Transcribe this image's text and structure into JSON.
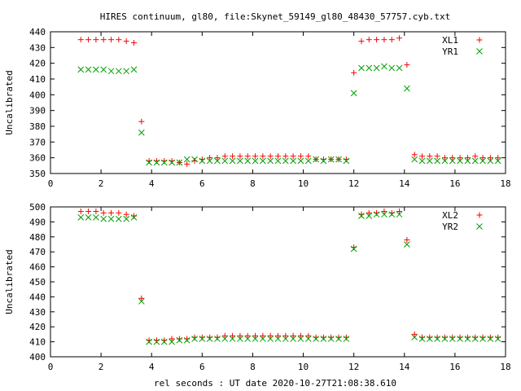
{
  "chart_data": {
    "title": "HIRES continuum, gl80, file:Skynet_59149_gl80_48430_57757.cyb.txt",
    "xlabel": "rel seconds : UT date 2020-10-27T21:08:38.610",
    "panels": [
      {
        "type": "scatter",
        "ylabel": "Uncalibrated",
        "xlim": [
          0,
          18
        ],
        "ylim": [
          350,
          440
        ],
        "xticks": [
          0,
          2,
          4,
          6,
          8,
          10,
          12,
          14,
          16,
          18
        ],
        "yticks": [
          350,
          360,
          370,
          380,
          390,
          400,
          410,
          420,
          430,
          440
        ],
        "legend_position": "top-right",
        "x": [
          1.2,
          1.5,
          1.8,
          2.1,
          2.4,
          2.7,
          3.0,
          3.3,
          3.6,
          3.9,
          4.2,
          4.5,
          4.8,
          5.1,
          5.4,
          5.7,
          6.0,
          6.3,
          6.6,
          6.9,
          7.2,
          7.5,
          7.8,
          8.1,
          8.4,
          8.7,
          9.0,
          9.3,
          9.6,
          9.9,
          10.2,
          10.5,
          10.8,
          11.1,
          11.4,
          11.7,
          12.0,
          12.3,
          12.6,
          12.9,
          13.2,
          13.5,
          13.8,
          14.1,
          14.4,
          14.7,
          15.0,
          15.3,
          15.6,
          15.9,
          16.2,
          16.5,
          16.8,
          17.1,
          17.4,
          17.7
        ],
        "series": [
          {
            "name": "XL1",
            "marker": "+",
            "color": "#ff0000",
            "values": [
              435,
              435,
              435,
              435,
              435,
              435,
              434,
              433,
              383,
              358,
              358,
              358,
              358,
              357,
              356,
              358,
              359,
              360,
              360,
              361,
              361,
              361,
              361,
              361,
              361,
              361,
              361,
              361,
              361,
              361,
              361,
              359,
              359,
              359,
              359,
              359,
              414,
              434,
              435,
              435,
              435,
              435,
              436,
              419,
              362,
              361,
              361,
              361,
              360,
              360,
              360,
              360,
              361,
              360,
              360,
              360
            ]
          },
          {
            "name": "YR1",
            "marker": "x",
            "color": "#00a000",
            "values": [
              416,
              416,
              416,
              416,
              415,
              415,
              415,
              416,
              376,
              357,
              357,
              357,
              357,
              357,
              359,
              359,
              358,
              358,
              358,
              358,
              358,
              358,
              358,
              358,
              358,
              358,
              358,
              358,
              358,
              358,
              358,
              359,
              358,
              359,
              359,
              358,
              401,
              417,
              417,
              417,
              418,
              417,
              417,
              404,
              359,
              358,
              358,
              358,
              358,
              358,
              358,
              358,
              358,
              358,
              358,
              358
            ]
          }
        ]
      },
      {
        "type": "scatter",
        "ylabel": "Uncalibrated",
        "xlim": [
          0,
          18
        ],
        "ylim": [
          400,
          500
        ],
        "xticks": [
          0,
          2,
          4,
          6,
          8,
          10,
          12,
          14,
          16,
          18
        ],
        "yticks": [
          400,
          410,
          420,
          430,
          440,
          450,
          460,
          470,
          480,
          490,
          500
        ],
        "legend_position": "top-right",
        "x": [
          1.2,
          1.5,
          1.8,
          2.1,
          2.4,
          2.7,
          3.0,
          3.3,
          3.6,
          3.9,
          4.2,
          4.5,
          4.8,
          5.1,
          5.4,
          5.7,
          6.0,
          6.3,
          6.6,
          6.9,
          7.2,
          7.5,
          7.8,
          8.1,
          8.4,
          8.7,
          9.0,
          9.3,
          9.6,
          9.9,
          10.2,
          10.5,
          10.8,
          11.1,
          11.4,
          11.7,
          12.0,
          12.3,
          12.6,
          12.9,
          13.2,
          13.5,
          13.8,
          14.1,
          14.4,
          14.7,
          15.0,
          15.3,
          15.6,
          15.9,
          16.2,
          16.5,
          16.8,
          17.1,
          17.4,
          17.7
        ],
        "series": [
          {
            "name": "XL2",
            "marker": "+",
            "color": "#ff0000",
            "values": [
              497,
              497,
              497,
              496,
              496,
              496,
              495,
              494,
              439,
              411,
              411,
              411,
              412,
              412,
              412,
              413,
              413,
              413,
              413,
              414,
              414,
              414,
              414,
              414,
              414,
              414,
              414,
              414,
              414,
              414,
              414,
              413,
              413,
              413,
              413,
              413,
              473,
              495,
              496,
              496,
              497,
              496,
              497,
              478,
              415,
              413,
              413,
              413,
              413,
              413,
              413,
              413,
              413,
              413,
              413,
              413
            ]
          },
          {
            "name": "YR2",
            "marker": "x",
            "color": "#00a000",
            "values": [
              493,
              493,
              493,
              492,
              492,
              492,
              492,
              493,
              437,
              410,
              410,
              410,
              410,
              411,
              411,
              412,
              412,
              412,
              412,
              412,
              412,
              412,
              412,
              412,
              412,
              412,
              412,
              412,
              412,
              412,
              412,
              412,
              412,
              412,
              412,
              412,
              472,
              494,
              494,
              495,
              495,
              495,
              495,
              475,
              413,
              412,
              412,
              412,
              412,
              412,
              412,
              412,
              412,
              412,
              412,
              412
            ]
          }
        ]
      }
    ]
  }
}
